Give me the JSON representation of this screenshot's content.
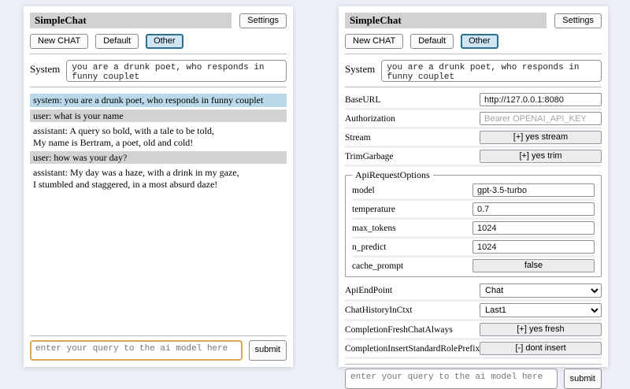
{
  "header": {
    "title": "SimpleChat",
    "settings_label": "Settings",
    "new_chat_label": "New CHAT",
    "session_default_label": "Default",
    "session_other_label": "Other",
    "selected_session": "Other"
  },
  "system_prompt": {
    "label": "System",
    "value": "you are a drunk poet, who responds in funny couplet"
  },
  "chat": {
    "messages": [
      {
        "role": "system",
        "text": "system: you are a drunk poet, who responds in funny couplet"
      },
      {
        "role": "user",
        "text": "user: what is your name"
      },
      {
        "role": "assistant",
        "text": "assistant: A query so bold, with a tale to be told,\nMy name is Bertram, a poet, old and cold!"
      },
      {
        "role": "user",
        "text": "user: how was your day?"
      },
      {
        "role": "assistant",
        "text": "assistant: My day was a haze, with a drink in my gaze,\nI stumbled and staggered, in a most absurd daze!"
      }
    ]
  },
  "settings": {
    "base_url": {
      "label": "BaseURL",
      "value": "http://127.0.0.1:8080"
    },
    "authorization": {
      "label": "Authorization",
      "placeholder": "Bearer OPENAI_API_KEY"
    },
    "stream": {
      "label": "Stream",
      "value": "[+] yes stream"
    },
    "trim_garbage": {
      "label": "TrimGarbage",
      "value": "[+] yes trim"
    },
    "api_request_options": {
      "legend": "ApiRequestOptions",
      "model": {
        "label": "model",
        "value": "gpt-3.5-turbo"
      },
      "temperature": {
        "label": "temperature",
        "value": "0.7"
      },
      "max_tokens": {
        "label": "max_tokens",
        "value": "1024"
      },
      "n_predict": {
        "label": "n_predict",
        "value": "1024"
      },
      "cache_prompt": {
        "label": "cache_prompt",
        "value": "false"
      }
    },
    "api_endpoint": {
      "label": "ApiEndPoint",
      "value": "Chat"
    },
    "chat_history_in_ctxt": {
      "label": "ChatHistoryInCtxt",
      "value": "Last1"
    },
    "completion_fresh_chat_always": {
      "label": "CompletionFreshChatAlways",
      "value": "[+] yes fresh"
    },
    "completion_insert_standard_role_prefix": {
      "label": "CompletionInsertStandardRolePrefix",
      "value": "[-] dont insert"
    }
  },
  "query": {
    "placeholder": "enter your query to the ai model here",
    "submit_label": "submit"
  },
  "colors": {
    "page_background": "#edeff6",
    "title_bar_background": "#d2d2d2",
    "selected_session_background": "#cfe7f4",
    "selected_session_border": "#2e6e91",
    "system_message_background": "#b9d9e8",
    "user_message_background": "#d3d3d3",
    "query_focus_border": "#dca74e"
  }
}
